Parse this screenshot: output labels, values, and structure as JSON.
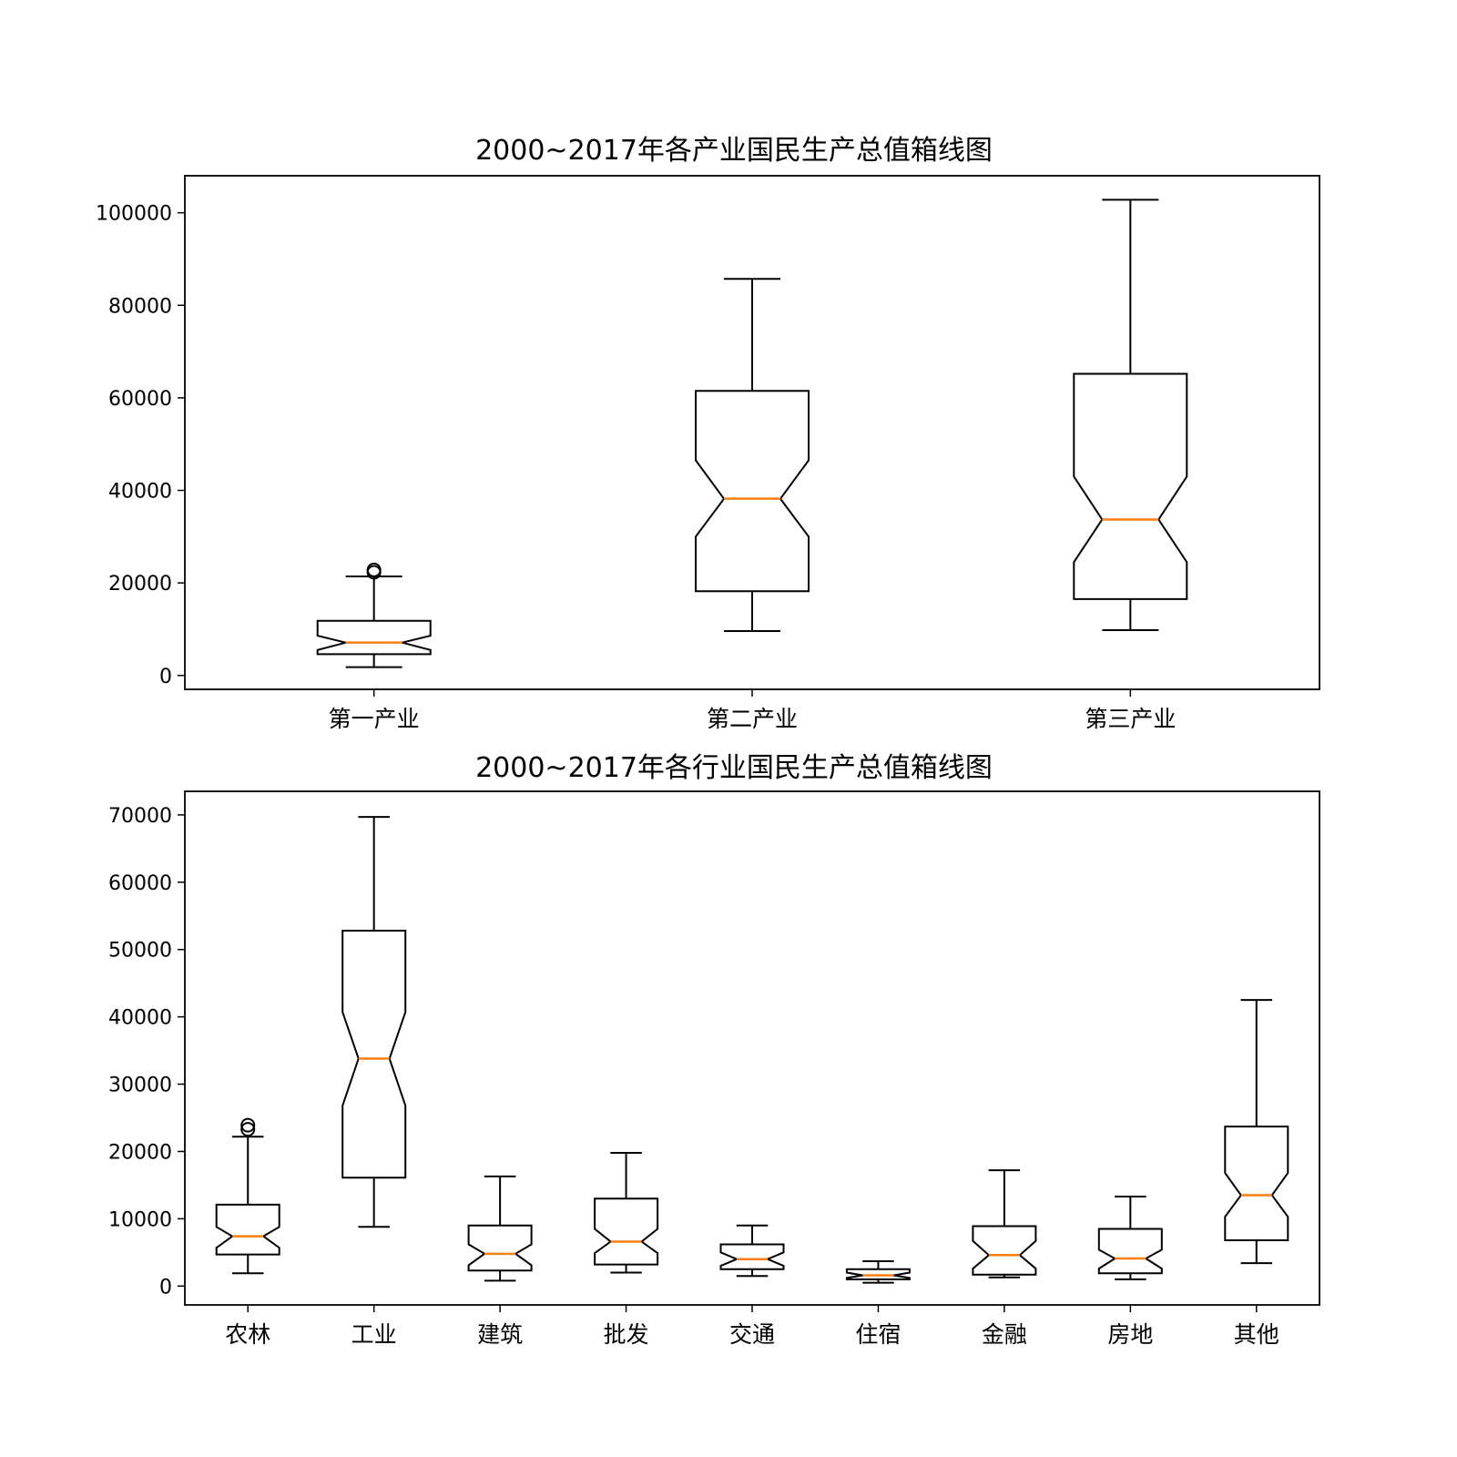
{
  "chart_data": [
    {
      "type": "boxplot",
      "notched": true,
      "title": "2000~2017年各产业国民生产总值箱线图",
      "xlabel": "",
      "ylabel": "",
      "ylim": [
        -3000,
        108000
      ],
      "yticks": [
        0,
        20000,
        40000,
        60000,
        80000,
        100000
      ],
      "categories": [
        "第一产业",
        "第二产业",
        "第三产业"
      ],
      "boxes": [
        {
          "name": "第一产业",
          "whislo": 1800,
          "q1": 4600,
          "med": 7100,
          "q3": 11800,
          "whishi": 21400,
          "notch_lo": 5500,
          "notch_hi": 8600,
          "fliers": [
            22300,
            22800
          ]
        },
        {
          "name": "第二产业",
          "whislo": 9600,
          "q1": 18200,
          "med": 38200,
          "q3": 61500,
          "whishi": 85700,
          "notch_lo": 30000,
          "notch_hi": 46500,
          "fliers": []
        },
        {
          "name": "第三产业",
          "whislo": 9800,
          "q1": 16500,
          "med": 33700,
          "q3": 65200,
          "whishi": 102800,
          "notch_lo": 24500,
          "notch_hi": 43000,
          "fliers": []
        }
      ],
      "grid": false,
      "colors": {
        "box": "#000000",
        "median": "#ff7f0e",
        "flier": "#000000"
      }
    },
    {
      "type": "boxplot",
      "notched": true,
      "title": "2000~2017年各行业国民生产总值箱线图",
      "xlabel": "",
      "ylabel": "",
      "ylim": [
        -2800,
        73500
      ],
      "yticks": [
        0,
        10000,
        20000,
        30000,
        40000,
        50000,
        60000,
        70000
      ],
      "categories": [
        "农林",
        "工业",
        "建筑",
        "批发",
        "交通",
        "住宿",
        "金融",
        "房地",
        "其他"
      ],
      "boxes": [
        {
          "name": "农林",
          "whislo": 1900,
          "q1": 4700,
          "med": 7400,
          "q3": 12100,
          "whishi": 22200,
          "notch_lo": 5700,
          "notch_hi": 8800,
          "fliers": [
            23300,
            23900
          ]
        },
        {
          "name": "工业",
          "whislo": 8800,
          "q1": 16100,
          "med": 33800,
          "q3": 52800,
          "whishi": 69700,
          "notch_lo": 26800,
          "notch_hi": 40700,
          "fliers": []
        },
        {
          "name": "建筑",
          "whislo": 800,
          "q1": 2300,
          "med": 4800,
          "q3": 9000,
          "whishi": 16300,
          "notch_lo": 3100,
          "notch_hi": 6200,
          "fliers": []
        },
        {
          "name": "批发",
          "whislo": 2000,
          "q1": 3200,
          "med": 6600,
          "q3": 13000,
          "whishi": 19800,
          "notch_lo": 4900,
          "notch_hi": 8500,
          "fliers": []
        },
        {
          "name": "交通",
          "whislo": 1500,
          "q1": 2500,
          "med": 4000,
          "q3": 6200,
          "whishi": 9000,
          "notch_lo": 3000,
          "notch_hi": 5000,
          "fliers": []
        },
        {
          "name": "住宿",
          "whislo": 500,
          "q1": 1000,
          "med": 1600,
          "q3": 2500,
          "whishi": 3700,
          "notch_lo": 1200,
          "notch_hi": 2000,
          "fliers": []
        },
        {
          "name": "金融",
          "whislo": 1300,
          "q1": 1700,
          "med": 4600,
          "q3": 8900,
          "whishi": 17200,
          "notch_lo": 2600,
          "notch_hi": 6700,
          "fliers": []
        },
        {
          "name": "房地",
          "whislo": 1000,
          "q1": 1900,
          "med": 4100,
          "q3": 8500,
          "whishi": 13300,
          "notch_lo": 2600,
          "notch_hi": 5400,
          "fliers": []
        },
        {
          "name": "其他",
          "whislo": 3400,
          "q1": 6800,
          "med": 13500,
          "q3": 23700,
          "whishi": 42500,
          "notch_lo": 10300,
          "notch_hi": 16800,
          "fliers": []
        }
      ],
      "grid": false,
      "colors": {
        "box": "#000000",
        "median": "#ff7f0e",
        "flier": "#000000"
      }
    }
  ]
}
